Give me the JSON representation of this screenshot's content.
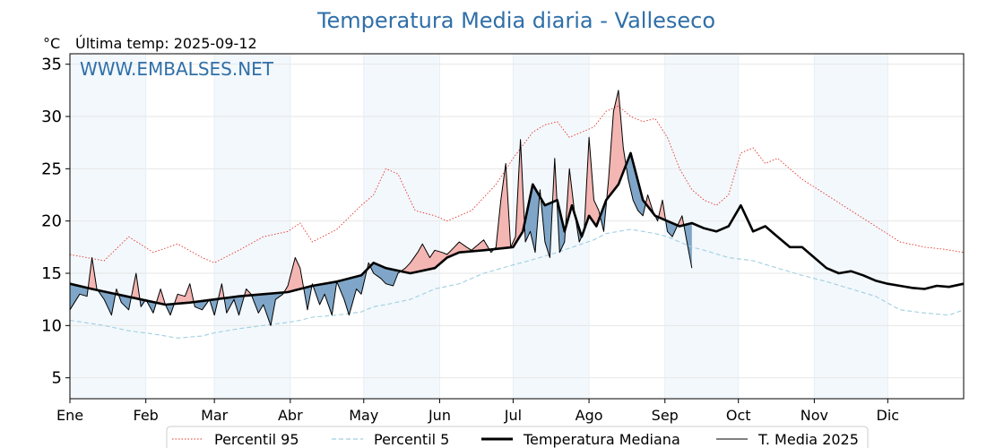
{
  "chart_data": {
    "type": "line",
    "title": "Temperatura Media diaria - Valleseco",
    "unit_label": "°C",
    "last_temp_label": "Última temp: 2025-09-12",
    "watermark": "WWW.EMBALSES.NET",
    "ylim": [
      3,
      36
    ],
    "yticks": [
      5,
      10,
      15,
      20,
      25,
      30,
      35
    ],
    "xlim": [
      1,
      366
    ],
    "months": [
      {
        "label": "Ene",
        "day": 1
      },
      {
        "label": "Feb",
        "day": 32
      },
      {
        "label": "Mar",
        "day": 60
      },
      {
        "label": "Abr",
        "day": 91
      },
      {
        "label": "May",
        "day": 121
      },
      {
        "label": "Jun",
        "day": 152
      },
      {
        "label": "Jul",
        "day": 182
      },
      {
        "label": "Ago",
        "day": 213
      },
      {
        "label": "Sep",
        "day": 244
      },
      {
        "label": "Oct",
        "day": 274
      },
      {
        "label": "Nov",
        "day": 305
      },
      {
        "label": "Dic",
        "day": 335
      }
    ],
    "shade_color": "#f3f8fc",
    "above_fill": "#f4b6b3",
    "below_fill": "#7fa6c8",
    "series": [
      {
        "name": "Percentil 95",
        "style": "dotted",
        "color": "#e5342b",
        "days": [
          1,
          15,
          25,
          35,
          45,
          55,
          60,
          70,
          80,
          90,
          95,
          100,
          110,
          120,
          125,
          130,
          135,
          142,
          150,
          155,
          165,
          175,
          182,
          190,
          195,
          200,
          205,
          210,
          215,
          220,
          225,
          230,
          235,
          240,
          245,
          250,
          255,
          260,
          265,
          270,
          275,
          280,
          285,
          290,
          300,
          310,
          320,
          330,
          340,
          350,
          358,
          366
        ],
        "values": [
          16.8,
          16.2,
          18.5,
          17.0,
          17.8,
          16.5,
          16.0,
          17.2,
          18.5,
          19.0,
          19.8,
          18.0,
          19.2,
          21.5,
          22.5,
          25.0,
          24.5,
          21.0,
          20.5,
          20.0,
          21.0,
          23.5,
          26.0,
          28.5,
          29.2,
          29.5,
          28.0,
          28.5,
          29.0,
          30.5,
          31.0,
          30.0,
          29.5,
          29.8,
          28.0,
          25.0,
          23.0,
          22.0,
          21.5,
          22.5,
          26.5,
          27.0,
          25.5,
          26.0,
          24.0,
          22.5,
          21.0,
          19.5,
          18.0,
          17.5,
          17.3,
          17.0
        ]
      },
      {
        "name": "Percentil 5",
        "style": "dashed",
        "color": "#9fcfe0",
        "days": [
          1,
          15,
          25,
          35,
          45,
          55,
          60,
          70,
          80,
          90,
          95,
          100,
          110,
          120,
          125,
          130,
          140,
          150,
          160,
          170,
          182,
          190,
          200,
          210,
          215,
          220,
          225,
          230,
          235,
          240,
          245,
          250,
          255,
          260,
          270,
          280,
          290,
          300,
          310,
          320,
          330,
          340,
          350,
          360,
          366
        ],
        "values": [
          10.5,
          10.0,
          9.5,
          9.2,
          8.8,
          9.0,
          9.3,
          9.7,
          10.0,
          10.3,
          10.5,
          10.8,
          11.0,
          11.3,
          11.8,
          12.0,
          12.5,
          13.5,
          14.0,
          15.0,
          15.8,
          16.3,
          17.0,
          17.8,
          18.2,
          18.8,
          19.0,
          19.2,
          19.0,
          18.8,
          18.5,
          18.0,
          17.5,
          17.2,
          16.5,
          16.2,
          15.5,
          14.8,
          14.2,
          13.5,
          12.8,
          11.5,
          11.2,
          11.0,
          11.5
        ]
      },
      {
        "name": "Temperatura Mediana",
        "style": "thick",
        "color": "#000000",
        "days": [
          1,
          10,
          20,
          30,
          40,
          50,
          60,
          70,
          80,
          90,
          100,
          110,
          120,
          125,
          130,
          140,
          150,
          155,
          160,
          170,
          182,
          186,
          190,
          195,
          200,
          203,
          206,
          210,
          213,
          216,
          220,
          225,
          230,
          235,
          240,
          245,
          250,
          255,
          260,
          265,
          270,
          275,
          280,
          285,
          290,
          295,
          300,
          305,
          310,
          315,
          320,
          325,
          330,
          335,
          340,
          345,
          350,
          355,
          360,
          366
        ],
        "values": [
          14.0,
          13.5,
          13.0,
          12.5,
          12.0,
          12.2,
          12.5,
          12.8,
          13.0,
          13.2,
          13.8,
          14.2,
          14.8,
          16.0,
          15.5,
          15.0,
          15.5,
          16.5,
          17.0,
          17.2,
          17.5,
          19.0,
          23.5,
          21.5,
          22.0,
          19.0,
          21.5,
          18.5,
          20.5,
          19.5,
          22.0,
          23.5,
          26.5,
          22.0,
          20.5,
          20.0,
          19.5,
          19.8,
          19.3,
          19.0,
          19.5,
          21.5,
          19.0,
          19.5,
          18.5,
          17.5,
          17.5,
          16.5,
          15.5,
          15.0,
          15.2,
          14.8,
          14.3,
          14.0,
          13.8,
          13.6,
          13.5,
          13.8,
          13.7,
          14.0
        ]
      },
      {
        "name": "T. Media 2025",
        "style": "thin",
        "color": "#000000",
        "days": [
          1,
          5,
          8,
          10,
          12,
          15,
          18,
          20,
          22,
          25,
          28,
          30,
          32,
          35,
          38,
          40,
          42,
          45,
          48,
          50,
          52,
          55,
          58,
          60,
          63,
          65,
          68,
          70,
          73,
          75,
          78,
          80,
          83,
          85,
          88,
          90,
          93,
          95,
          98,
          100,
          103,
          105,
          108,
          110,
          113,
          115,
          118,
          120,
          123,
          125,
          128,
          130,
          133,
          135,
          138,
          140,
          143,
          145,
          148,
          150,
          153,
          155,
          158,
          160,
          163,
          165,
          168,
          170,
          173,
          175,
          177,
          179,
          181,
          183,
          185,
          187,
          189,
          191,
          193,
          195,
          197,
          199,
          201,
          203,
          205,
          207,
          209,
          211,
          213,
          215,
          217,
          219,
          221,
          223,
          225,
          227,
          229,
          231,
          233,
          235,
          237,
          239,
          241,
          243,
          245,
          247,
          249,
          251,
          253,
          255
        ],
        "values": [
          11.5,
          13.0,
          12.8,
          16.5,
          13.5,
          12.5,
          11.0,
          13.5,
          12.2,
          11.5,
          15.0,
          11.8,
          12.5,
          11.2,
          13.5,
          12.0,
          11.0,
          13.0,
          12.8,
          14.0,
          11.8,
          11.5,
          12.5,
          11.0,
          14.0,
          11.2,
          12.5,
          11.0,
          13.5,
          13.0,
          11.2,
          12.0,
          10.0,
          12.5,
          13.0,
          13.8,
          16.5,
          15.5,
          11.5,
          14.0,
          12.0,
          13.0,
          11.0,
          14.2,
          12.5,
          11.0,
          13.5,
          13.0,
          16.0,
          15.0,
          14.5,
          14.0,
          13.8,
          15.0,
          15.5,
          16.0,
          17.0,
          17.8,
          16.5,
          17.2,
          17.0,
          16.8,
          17.5,
          18.0,
          17.5,
          17.2,
          17.8,
          18.2,
          17.0,
          17.5,
          22.0,
          25.5,
          17.5,
          18.5,
          27.8,
          18.0,
          19.0,
          17.0,
          23.0,
          18.0,
          16.5,
          26.0,
          17.0,
          18.0,
          25.0,
          21.0,
          18.0,
          19.0,
          28.0,
          22.0,
          21.0,
          19.0,
          24.0,
          30.5,
          32.5,
          27.0,
          24.0,
          22.0,
          21.0,
          20.5,
          22.5,
          21.0,
          20.0,
          22.0,
          19.0,
          18.5,
          19.5,
          20.5,
          18.0,
          15.5
        ]
      }
    ],
    "legend": {
      "position": "bottom-center",
      "ncol": 4
    },
    "grid": true
  }
}
